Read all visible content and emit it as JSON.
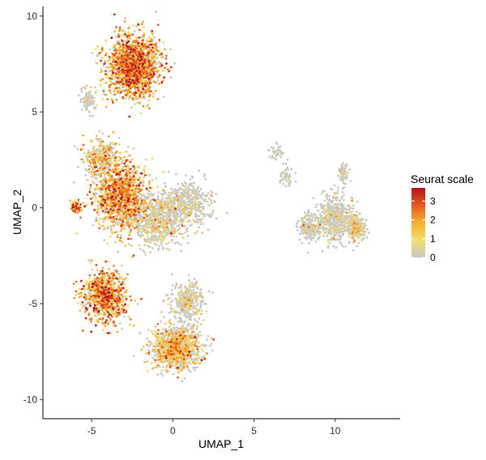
{
  "chart_data": {
    "type": "scatter",
    "title": "",
    "xlabel": "UMAP_1",
    "ylabel": "UMAP_2",
    "xlim": [
      -8,
      14
    ],
    "ylim": [
      -11,
      10.5
    ],
    "x_ticks": [
      -5,
      0,
      5,
      10
    ],
    "y_ticks": [
      -10,
      -5,
      0,
      5,
      10
    ],
    "grid": false,
    "legend": {
      "title": "Seurat scale",
      "placement": "right",
      "range": [
        0,
        3.7
      ],
      "ticks": [
        0,
        1,
        2,
        3
      ],
      "colors": [
        "#c8c8c8",
        "#f2df6e",
        "#f5b030",
        "#e65a1e",
        "#b3121f"
      ]
    },
    "clusters": [
      {
        "center": [
          -2.4,
          7.4
        ],
        "spread": [
          1.5,
          1.5
        ],
        "points": 1500,
        "mean_value": 1.9
      },
      {
        "center": [
          -5.2,
          5.6
        ],
        "spread": [
          0.4,
          0.6
        ],
        "points": 90,
        "mean_value": 0.3
      },
      {
        "center": [
          -4.4,
          2.6
        ],
        "spread": [
          1.0,
          0.9
        ],
        "points": 350,
        "mean_value": 1.3
      },
      {
        "center": [
          -3.2,
          0.6
        ],
        "spread": [
          1.4,
          1.6
        ],
        "points": 1200,
        "mean_value": 1.7
      },
      {
        "center": [
          -1.0,
          -0.6
        ],
        "spread": [
          1.4,
          1.3
        ],
        "points": 700,
        "mean_value": 0.7
      },
      {
        "center": [
          0.9,
          0.2
        ],
        "spread": [
          1.4,
          1.0
        ],
        "points": 450,
        "mean_value": 0.5
      },
      {
        "center": [
          -6.0,
          0.0
        ],
        "spread": [
          0.3,
          0.3
        ],
        "points": 60,
        "mean_value": 2.0
      },
      {
        "center": [
          -4.2,
          -4.6
        ],
        "spread": [
          1.2,
          1.2
        ],
        "points": 800,
        "mean_value": 1.9
      },
      {
        "center": [
          0.9,
          -4.9
        ],
        "spread": [
          0.9,
          1.0
        ],
        "points": 350,
        "mean_value": 0.6
      },
      {
        "center": [
          0.2,
          -7.3
        ],
        "spread": [
          1.3,
          1.0
        ],
        "points": 1100,
        "mean_value": 1.2
      },
      {
        "center": [
          6.4,
          2.9
        ],
        "spread": [
          0.4,
          0.3
        ],
        "points": 40,
        "mean_value": 0.4
      },
      {
        "center": [
          7.0,
          1.6
        ],
        "spread": [
          0.4,
          0.6
        ],
        "points": 50,
        "mean_value": 0.2
      },
      {
        "center": [
          8.4,
          -1.0
        ],
        "spread": [
          0.6,
          0.6
        ],
        "points": 200,
        "mean_value": 0.3
      },
      {
        "center": [
          10.0,
          -0.5
        ],
        "spread": [
          0.9,
          1.1
        ],
        "points": 550,
        "mean_value": 0.4
      },
      {
        "center": [
          11.3,
          -1.0
        ],
        "spread": [
          0.5,
          0.6
        ],
        "points": 250,
        "mean_value": 0.7
      },
      {
        "center": [
          10.5,
          1.8
        ],
        "spread": [
          0.3,
          0.5
        ],
        "points": 80,
        "mean_value": 0.2
      }
    ]
  }
}
